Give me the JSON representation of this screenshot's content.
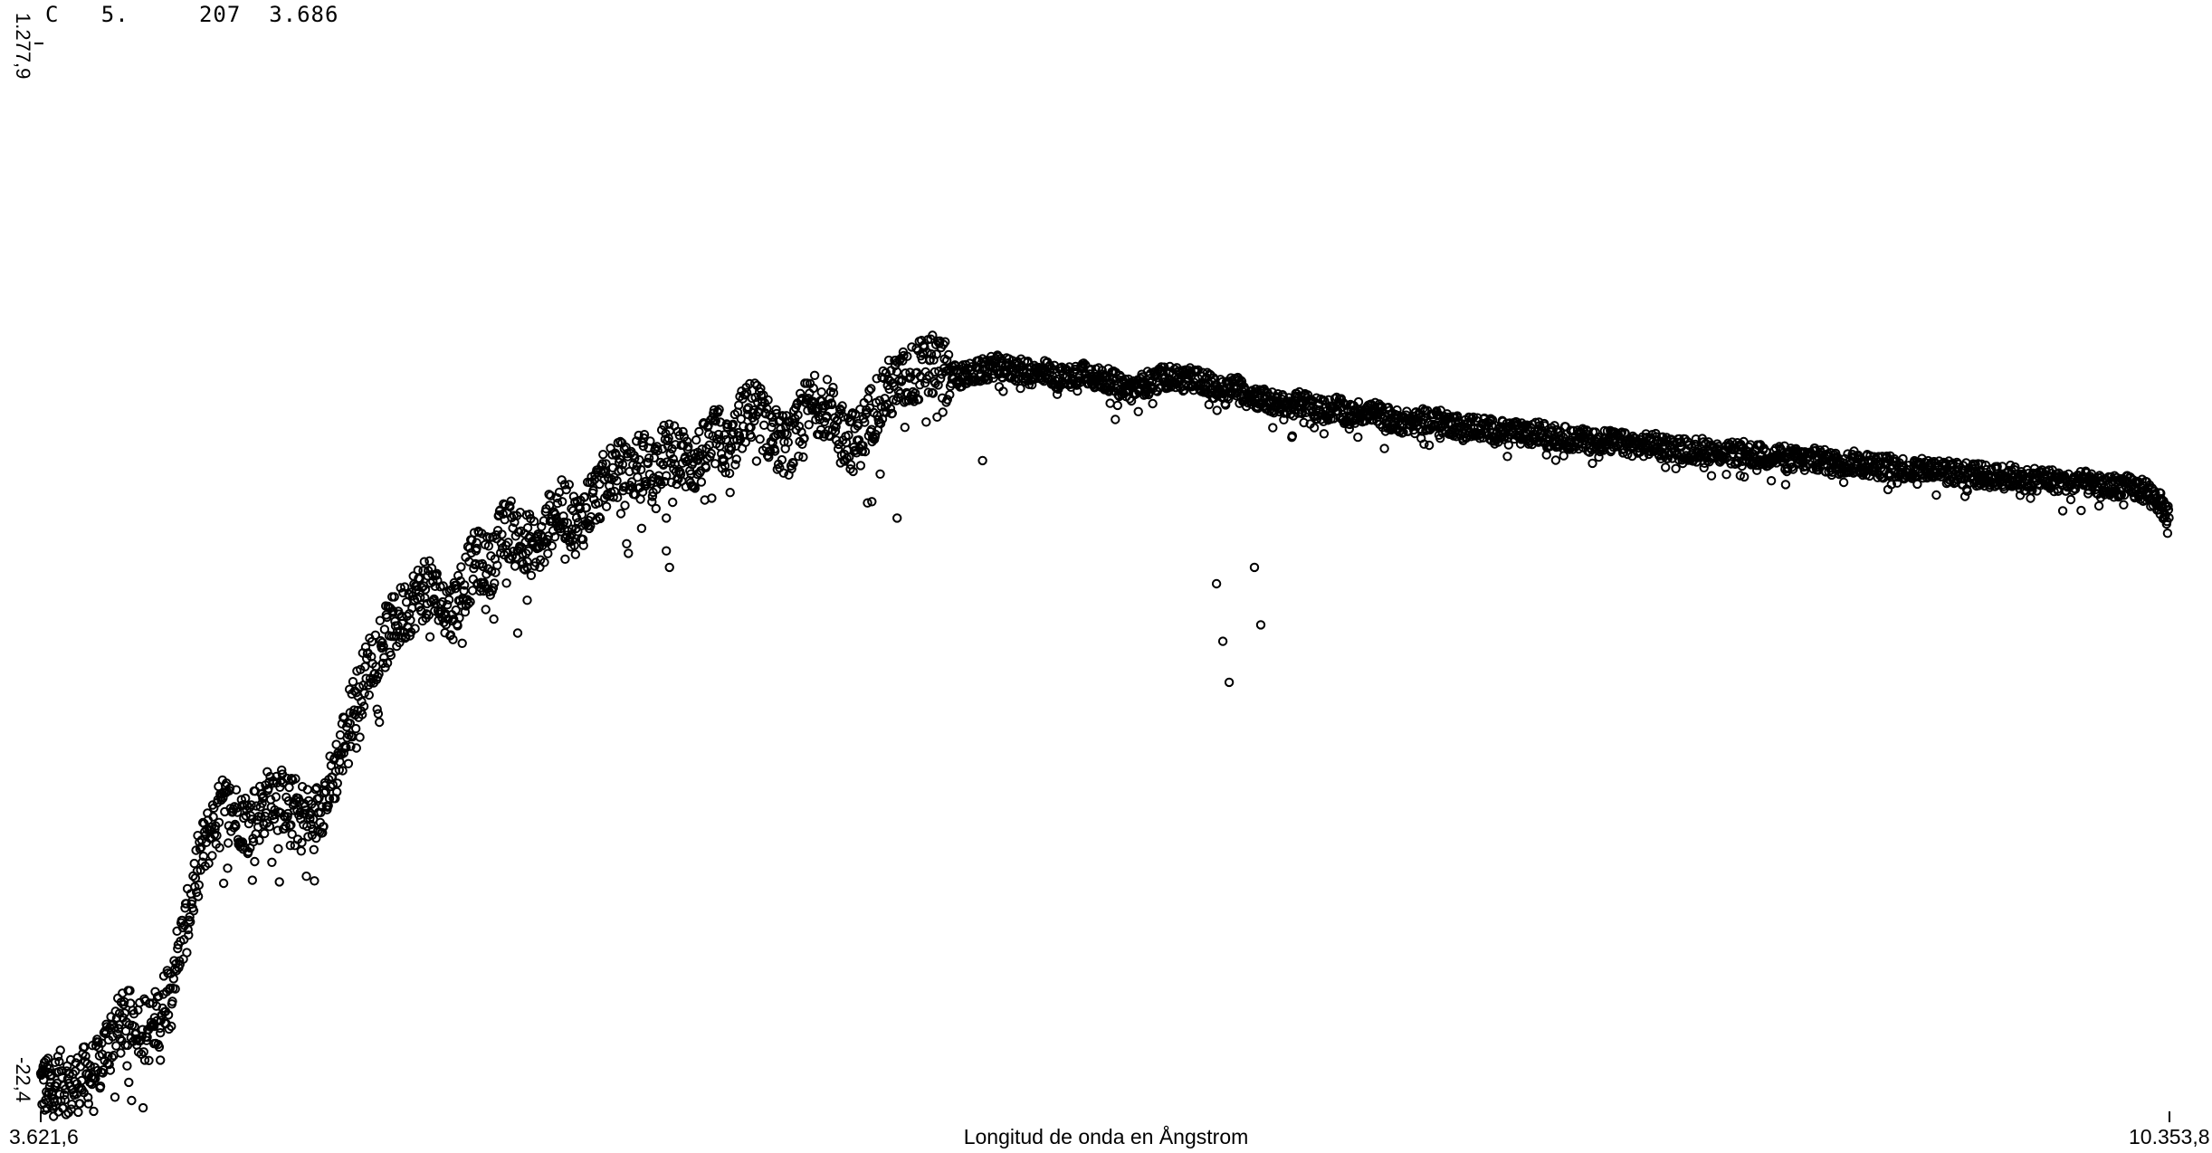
{
  "header": {
    "line": "C   5.     207  3.686"
  },
  "chart_data": {
    "type": "scatter",
    "title": "",
    "xlabel": "Longitud de onda en Ångstrom",
    "ylabel": "",
    "xlim": [
      3621.6,
      10353.8
    ],
    "ylim": [
      -22.4,
      1277.9
    ],
    "x_tick_labels": [
      "3.621,6",
      "10.353,8"
    ],
    "y_tick_labels": [
      "-22,4",
      "1.277,9"
    ],
    "grid": false,
    "marker": "open-circle",
    "marker_color": "#000000",
    "series": [
      {
        "points": [
          [
            3621.6,
            12
          ],
          [
            3650,
            5
          ],
          [
            3680,
            15
          ],
          [
            3720,
            8
          ],
          [
            3760,
            20
          ],
          [
            3800,
            28
          ],
          [
            3840,
            70
          ],
          [
            3880,
            85
          ],
          [
            3920,
            90
          ],
          [
            3960,
            78
          ],
          [
            4000,
            95
          ],
          [
            4040,
            150
          ],
          [
            4080,
            200
          ],
          [
            4120,
            280
          ],
          [
            4160,
            320
          ],
          [
            4200,
            350
          ],
          [
            4240,
            340
          ],
          [
            4280,
            330
          ],
          [
            4320,
            345
          ],
          [
            4360,
            370
          ],
          [
            4400,
            350
          ],
          [
            4440,
            345
          ],
          [
            4480,
            330
          ],
          [
            4520,
            360
          ],
          [
            4560,
            400
          ],
          [
            4600,
            460
          ],
          [
            4640,
            500
          ],
          [
            4680,
            540
          ],
          [
            4720,
            560
          ],
          [
            4760,
            580
          ],
          [
            4800,
            600
          ],
          [
            4840,
            615
          ],
          [
            4880,
            600
          ],
          [
            4920,
            585
          ],
          [
            4960,
            620
          ],
          [
            5000,
            650
          ],
          [
            5040,
            640
          ],
          [
            5080,
            680
          ],
          [
            5120,
            690
          ],
          [
            5160,
            670
          ],
          [
            5200,
            660
          ],
          [
            5240,
            705
          ],
          [
            5280,
            710
          ],
          [
            5320,
            690
          ],
          [
            5360,
            720
          ],
          [
            5400,
            740
          ],
          [
            5440,
            760
          ],
          [
            5480,
            750
          ],
          [
            5520,
            770
          ],
          [
            5560,
            760
          ],
          [
            5600,
            780
          ],
          [
            5640,
            775
          ],
          [
            5680,
            765
          ],
          [
            5720,
            780
          ],
          [
            5760,
            800
          ],
          [
            5800,
            780
          ],
          [
            5840,
            820
          ],
          [
            5880,
            835
          ],
          [
            5920,
            810
          ],
          [
            5960,
            790
          ],
          [
            6000,
            790
          ],
          [
            6040,
            830
          ],
          [
            6080,
            840
          ],
          [
            6120,
            830
          ],
          [
            6160,
            805
          ],
          [
            6200,
            790
          ],
          [
            6240,
            820
          ],
          [
            6280,
            850
          ],
          [
            6320,
            860
          ],
          [
            6360,
            870
          ],
          [
            6400,
            880
          ],
          [
            6440,
            885
          ],
          [
            6480,
            880
          ],
          [
            6520,
            872
          ],
          [
            6560,
            875
          ],
          [
            6600,
            880
          ],
          [
            6640,
            885
          ],
          [
            6680,
            882
          ],
          [
            6720,
            880
          ],
          [
            6760,
            875
          ],
          [
            6800,
            880
          ],
          [
            6840,
            870
          ],
          [
            6880,
            872
          ],
          [
            6920,
            880
          ],
          [
            6960,
            870
          ],
          [
            7000,
            868
          ],
          [
            7040,
            860
          ],
          [
            7080,
            858
          ],
          [
            7120,
            865
          ],
          [
            7160,
            870
          ],
          [
            7200,
            872
          ],
          [
            7240,
            868
          ],
          [
            7280,
            870
          ],
          [
            7320,
            862
          ],
          [
            7360,
            855
          ],
          [
            7400,
            860
          ],
          [
            7440,
            852
          ],
          [
            7480,
            845
          ],
          [
            7520,
            840
          ],
          [
            7560,
            836
          ],
          [
            7600,
            840
          ],
          [
            7640,
            838
          ],
          [
            7680,
            830
          ],
          [
            7720,
            835
          ],
          [
            7760,
            825
          ],
          [
            7800,
            830
          ],
          [
            7840,
            828
          ],
          [
            7880,
            822
          ],
          [
            7920,
            818
          ],
          [
            7960,
            815
          ],
          [
            8000,
            820
          ],
          [
            8040,
            818
          ],
          [
            8080,
            815
          ],
          [
            8120,
            810
          ],
          [
            8160,
            812
          ],
          [
            8200,
            808
          ],
          [
            8240,
            805
          ],
          [
            8280,
            806
          ],
          [
            8320,
            800
          ],
          [
            8360,
            804
          ],
          [
            8400,
            800
          ],
          [
            8440,
            798
          ],
          [
            8480,
            796
          ],
          [
            8520,
            794
          ],
          [
            8560,
            795
          ],
          [
            8600,
            792
          ],
          [
            8640,
            790
          ],
          [
            8680,
            788
          ],
          [
            8720,
            790
          ],
          [
            8760,
            786
          ],
          [
            8800,
            785
          ],
          [
            8840,
            783
          ],
          [
            8880,
            784
          ],
          [
            8920,
            780
          ],
          [
            8960,
            778
          ],
          [
            9000,
            780
          ],
          [
            9040,
            777
          ],
          [
            9080,
            775
          ],
          [
            9120,
            776
          ],
          [
            9160,
            772
          ],
          [
            9200,
            770
          ],
          [
            9240,
            772
          ],
          [
            9280,
            768
          ],
          [
            9320,
            766
          ],
          [
            9360,
            768
          ],
          [
            9400,
            765
          ],
          [
            9440,
            762
          ],
          [
            9480,
            764
          ],
          [
            9520,
            760
          ],
          [
            9560,
            758
          ],
          [
            9600,
            760
          ],
          [
            9640,
            757
          ],
          [
            9680,
            755
          ],
          [
            9720,
            756
          ],
          [
            9760,
            752
          ],
          [
            9800,
            750
          ],
          [
            9840,
            752
          ],
          [
            9880,
            748
          ],
          [
            9920,
            746
          ],
          [
            9960,
            748
          ],
          [
            10000,
            745
          ],
          [
            10040,
            742
          ],
          [
            10080,
            744
          ],
          [
            10120,
            740
          ],
          [
            10160,
            738
          ],
          [
            10200,
            740
          ],
          [
            10240,
            736
          ],
          [
            10280,
            734
          ],
          [
            10320,
            720
          ],
          [
            10353.8,
            700
          ]
        ]
      }
    ],
    "absorption_dips": [
      [
        4870,
        630
      ],
      [
        5020,
        620
      ],
      [
        5000,
        670
      ],
      [
        5130,
        560
      ],
      [
        5160,
        640
      ],
      [
        5160,
        600
      ],
      [
        5600,
        700
      ],
      [
        5600,
        660
      ],
      [
        5610,
        640
      ],
      [
        6250,
        720
      ],
      [
        6330,
        700
      ],
      [
        6600,
        770
      ],
      [
        7340,
        620
      ],
      [
        7360,
        550
      ],
      [
        7380,
        500
      ],
      [
        7460,
        640
      ],
      [
        7480,
        570
      ],
      [
        5700,
        780
      ],
      [
        6030,
        790
      ],
      [
        7020,
        820
      ],
      [
        7580,
        800
      ],
      [
        3980,
        60
      ],
      [
        4000,
        40
      ],
      [
        4600,
        450
      ],
      [
        4620,
        420
      ],
      [
        5280,
        650
      ],
      [
        5300,
        680
      ]
    ]
  }
}
